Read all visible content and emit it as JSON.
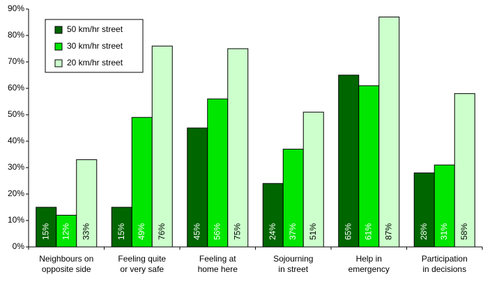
{
  "chart_data": {
    "type": "bar",
    "categories": [
      [
        "Neighbours on",
        "opposite side"
      ],
      [
        "Feeling quite",
        "or very safe"
      ],
      [
        "Feeling at",
        "home here"
      ],
      [
        "Sojourning",
        "in street"
      ],
      [
        "Help in",
        "emergency"
      ],
      [
        "Participation",
        "in decisions"
      ]
    ],
    "series": [
      {
        "name": "50 km/hr street",
        "color": "#006600",
        "values": [
          15,
          15,
          45,
          24,
          65,
          28
        ],
        "value_labels": [
          "15%",
          "15%",
          "45%",
          "24%",
          "65%",
          "28%"
        ]
      },
      {
        "name": "30 km/hr street",
        "color": "#00e600",
        "values": [
          12,
          49,
          56,
          37,
          61,
          31
        ],
        "value_labels": [
          "12%",
          "49%",
          "56%",
          "37%",
          "61%",
          "31%"
        ]
      },
      {
        "name": "20 km/hr street",
        "color": "#ccffcc",
        "values": [
          33,
          76,
          75,
          51,
          87,
          58
        ],
        "value_labels": [
          "33%",
          "76%",
          "75%",
          "51%",
          "87%",
          "58%"
        ]
      }
    ],
    "ylim": [
      0,
      90
    ],
    "yticks": [
      {
        "value": 0,
        "label": "0%"
      },
      {
        "value": 10,
        "label": "10%"
      },
      {
        "value": 20,
        "label": "20%"
      },
      {
        "value": 30,
        "label": "30%"
      },
      {
        "value": 40,
        "label": "40%"
      },
      {
        "value": 50,
        "label": "50%"
      },
      {
        "value": 60,
        "label": "60%"
      },
      {
        "value": 70,
        "label": "70%"
      },
      {
        "value": 80,
        "label": "80%"
      },
      {
        "value": 90,
        "label": "90%"
      }
    ],
    "grid": false,
    "legend": "upper left"
  }
}
